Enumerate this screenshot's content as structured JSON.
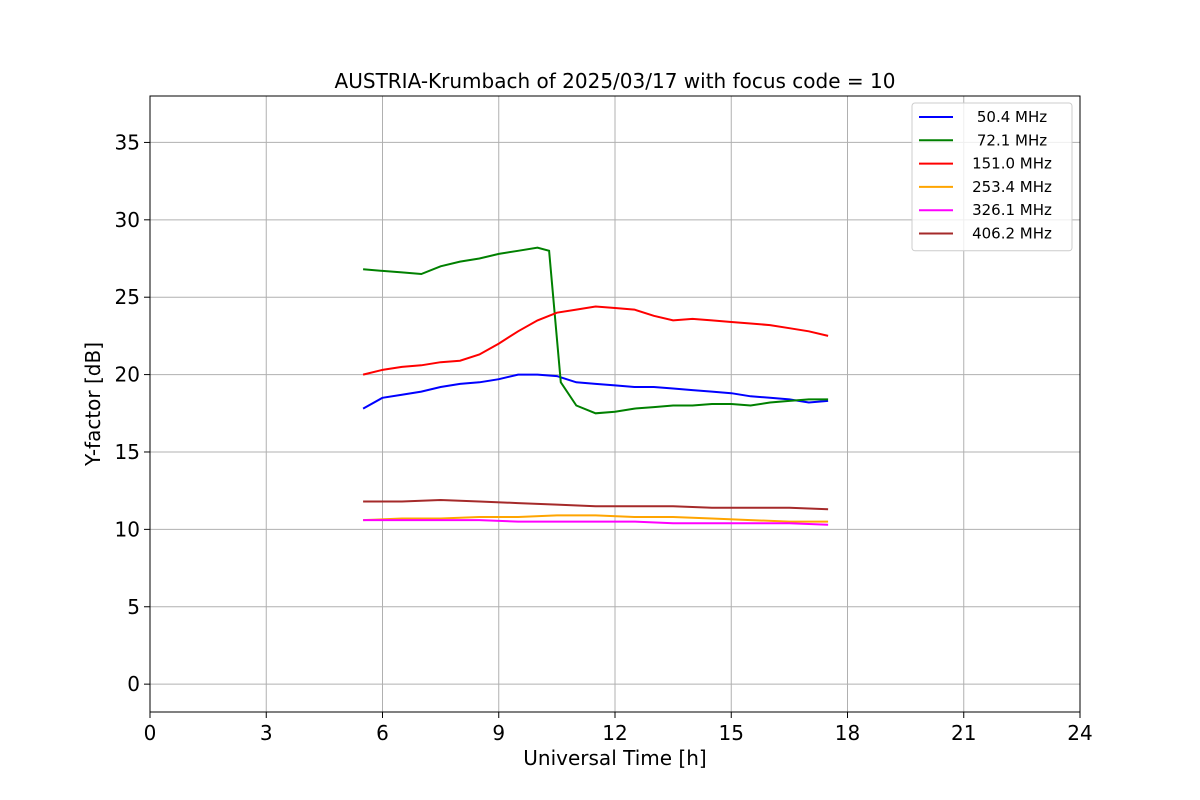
{
  "chart_data": {
    "type": "line",
    "title": "AUSTRIA-Krumbach of 2025/03/17 with focus code = 10",
    "xlabel": "Universal Time [h]",
    "ylabel": "Y-factor [dB]",
    "xlim": [
      0,
      24
    ],
    "ylim": [
      -1.8,
      38
    ],
    "xticks": [
      0,
      3,
      6,
      9,
      12,
      15,
      18,
      21,
      24
    ],
    "yticks": [
      0,
      5,
      10,
      15,
      20,
      25,
      30,
      35
    ],
    "grid": true,
    "legend_position": "top-right",
    "series": [
      {
        "name": "50.4 MHz",
        "color": "#0000ff",
        "x": [
          5.5,
          6.0,
          6.5,
          7.0,
          7.5,
          8.0,
          8.5,
          9.0,
          9.5,
          10.0,
          10.5,
          11.0,
          11.5,
          12.0,
          12.5,
          13.0,
          13.5,
          14.0,
          14.5,
          15.0,
          15.5,
          16.0,
          16.5,
          17.0,
          17.5
        ],
        "y": [
          17.8,
          18.5,
          18.7,
          18.9,
          19.2,
          19.4,
          19.5,
          19.7,
          20.0,
          20.0,
          19.9,
          19.5,
          19.4,
          19.3,
          19.2,
          19.2,
          19.1,
          19.0,
          18.9,
          18.8,
          18.6,
          18.5,
          18.4,
          18.2,
          18.3
        ]
      },
      {
        "name": "72.1 MHz",
        "color": "#008000",
        "x": [
          5.5,
          6.0,
          6.5,
          7.0,
          7.5,
          8.0,
          8.5,
          9.0,
          9.5,
          10.0,
          10.3,
          10.6,
          11.0,
          11.5,
          12.0,
          12.5,
          13.0,
          13.5,
          14.0,
          14.5,
          15.0,
          15.5,
          16.0,
          16.5,
          17.0,
          17.5
        ],
        "y": [
          26.8,
          26.7,
          26.6,
          26.5,
          27.0,
          27.3,
          27.5,
          27.8,
          28.0,
          28.2,
          28.0,
          19.5,
          18.0,
          17.5,
          17.6,
          17.8,
          17.9,
          18.0,
          18.0,
          18.1,
          18.1,
          18.0,
          18.2,
          18.3,
          18.4,
          18.4
        ]
      },
      {
        "name": "151.0 MHz",
        "color": "#ff0000",
        "x": [
          5.5,
          6.0,
          6.5,
          7.0,
          7.5,
          8.0,
          8.5,
          9.0,
          9.5,
          10.0,
          10.5,
          11.0,
          11.5,
          12.0,
          12.5,
          13.0,
          13.5,
          14.0,
          14.5,
          15.0,
          15.5,
          16.0,
          16.5,
          17.0,
          17.5
        ],
        "y": [
          20.0,
          20.3,
          20.5,
          20.6,
          20.8,
          20.9,
          21.3,
          22.0,
          22.8,
          23.5,
          24.0,
          24.2,
          24.4,
          24.3,
          24.2,
          23.8,
          23.5,
          23.6,
          23.5,
          23.4,
          23.3,
          23.2,
          23.0,
          22.8,
          22.5
        ]
      },
      {
        "name": "253.4 MHz",
        "color": "#ffa500",
        "x": [
          5.5,
          6.5,
          7.5,
          8.5,
          9.5,
          10.5,
          11.5,
          12.5,
          13.5,
          14.5,
          15.5,
          16.5,
          17.5
        ],
        "y": [
          10.6,
          10.7,
          10.7,
          10.8,
          10.8,
          10.9,
          10.9,
          10.8,
          10.8,
          10.7,
          10.6,
          10.5,
          10.5
        ]
      },
      {
        "name": "326.1 MHz",
        "color": "#ff00ff",
        "x": [
          5.5,
          6.5,
          7.5,
          8.5,
          9.5,
          10.5,
          11.5,
          12.5,
          13.5,
          14.5,
          15.5,
          16.5,
          17.5
        ],
        "y": [
          10.6,
          10.6,
          10.6,
          10.6,
          10.5,
          10.5,
          10.5,
          10.5,
          10.4,
          10.4,
          10.4,
          10.4,
          10.3
        ]
      },
      {
        "name": "406.2 MHz",
        "color": "#a52a2a",
        "x": [
          5.5,
          6.5,
          7.5,
          8.5,
          9.5,
          10.5,
          11.5,
          12.5,
          13.5,
          14.5,
          15.5,
          16.5,
          17.5
        ],
        "y": [
          11.8,
          11.8,
          11.9,
          11.8,
          11.7,
          11.6,
          11.5,
          11.5,
          11.5,
          11.4,
          11.4,
          11.4,
          11.3
        ]
      }
    ],
    "annotations": []
  }
}
